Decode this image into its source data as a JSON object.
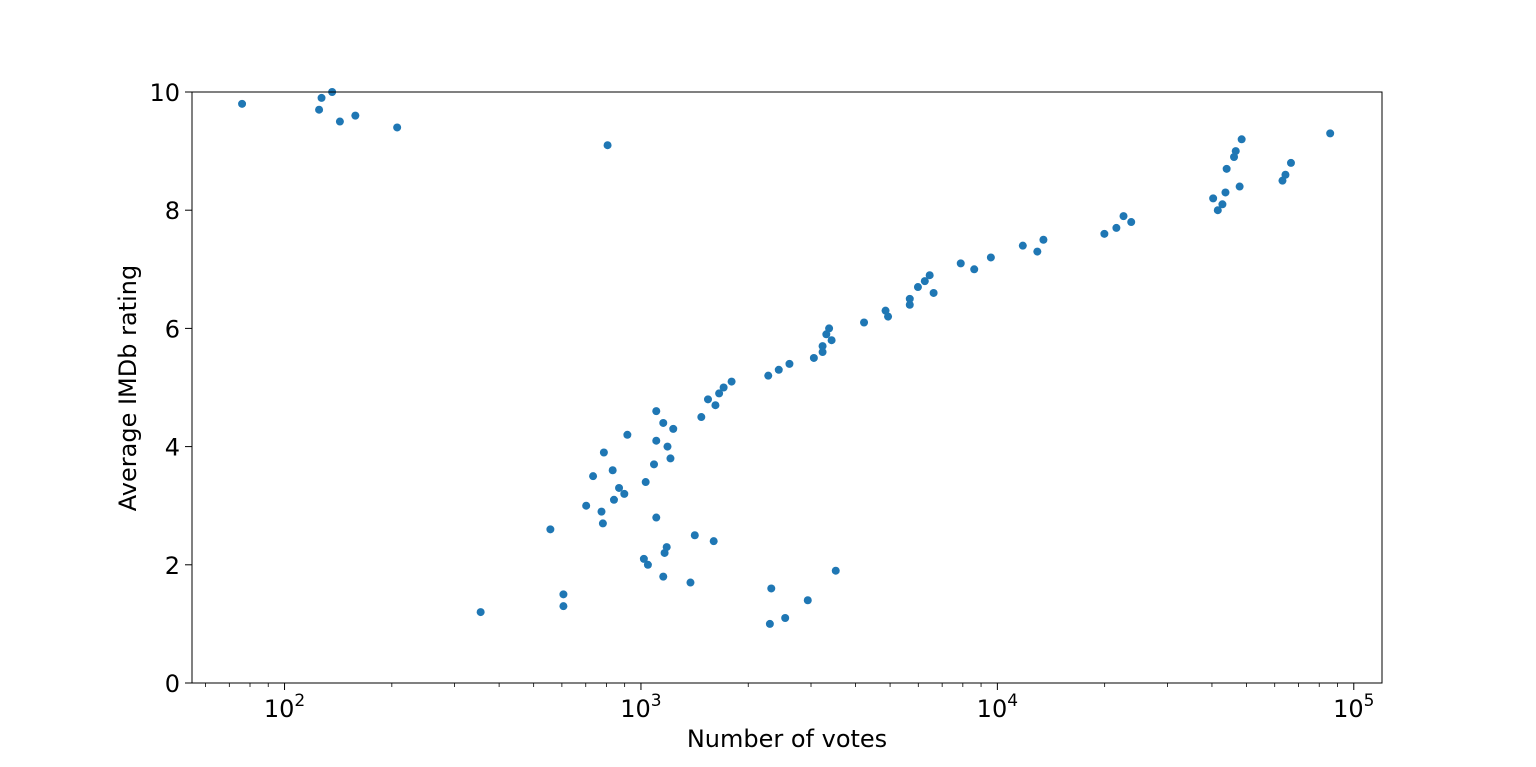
{
  "chart_data": {
    "type": "scatter",
    "title": "",
    "xlabel": "Number of votes",
    "ylabel": "Average IMDb rating",
    "xscale": "log",
    "xlim": [
      55,
      120000
    ],
    "ylim": [
      0,
      10
    ],
    "grid": false,
    "marker_color": "#1f77b4",
    "x_ticks": [
      {
        "value": 100,
        "base": "10",
        "exp": "2"
      },
      {
        "value": 1000,
        "base": "10",
        "exp": "3"
      },
      {
        "value": 10000,
        "base": "10",
        "exp": "4"
      },
      {
        "value": 100000,
        "base": "10",
        "exp": "5"
      }
    ],
    "y_ticks": [
      {
        "value": 0,
        "label": "0"
      },
      {
        "value": 2,
        "label": "2"
      },
      {
        "value": 4,
        "label": "4"
      },
      {
        "value": 6,
        "label": "6"
      },
      {
        "value": 8,
        "label": "8"
      },
      {
        "value": 10,
        "label": "10"
      }
    ],
    "points": [
      [
        76,
        9.8
      ],
      [
        125,
        9.7
      ],
      [
        127,
        9.9
      ],
      [
        136,
        10.0
      ],
      [
        143,
        9.5
      ],
      [
        158,
        9.6
      ],
      [
        207,
        9.4
      ],
      [
        355,
        1.2
      ],
      [
        557,
        2.6
      ],
      [
        606,
        1.5
      ],
      [
        606,
        1.3
      ],
      [
        702,
        3.0
      ],
      [
        734,
        3.5
      ],
      [
        775,
        2.9
      ],
      [
        782,
        2.7
      ],
      [
        787,
        3.9
      ],
      [
        806,
        9.1
      ],
      [
        833,
        3.6
      ],
      [
        840,
        3.1
      ],
      [
        868,
        3.3
      ],
      [
        898,
        3.2
      ],
      [
        916,
        4.2
      ],
      [
        1019,
        2.1
      ],
      [
        1031,
        3.4
      ],
      [
        1046,
        2.0
      ],
      [
        1088,
        3.7
      ],
      [
        1104,
        4.6
      ],
      [
        1104,
        4.1
      ],
      [
        1104,
        2.8
      ],
      [
        1155,
        4.4
      ],
      [
        1155,
        1.8
      ],
      [
        1165,
        2.2
      ],
      [
        1181,
        2.3
      ],
      [
        1187,
        4.0
      ],
      [
        1210,
        3.8
      ],
      [
        1232,
        4.3
      ],
      [
        1377,
        1.7
      ],
      [
        1416,
        2.5
      ],
      [
        1477,
        4.5
      ],
      [
        1542,
        4.8
      ],
      [
        1600,
        2.4
      ],
      [
        1618,
        4.7
      ],
      [
        1657,
        4.9
      ],
      [
        1706,
        5.0
      ],
      [
        1796,
        5.1
      ],
      [
        2276,
        5.2
      ],
      [
        2300,
        1.0
      ],
      [
        2321,
        1.6
      ],
      [
        2436,
        5.3
      ],
      [
        2539,
        1.1
      ],
      [
        2610,
        5.4
      ],
      [
        2938,
        1.4
      ],
      [
        3056,
        5.5
      ],
      [
        3233,
        5.6
      ],
      [
        3233,
        5.7
      ],
      [
        3312,
        5.9
      ],
      [
        3372,
        6.0
      ],
      [
        3427,
        5.8
      ],
      [
        3520,
        1.9
      ],
      [
        4226,
        6.1
      ],
      [
        4856,
        6.3
      ],
      [
        4935,
        6.2
      ],
      [
        5679,
        6.4
      ],
      [
        5679,
        6.5
      ],
      [
        5986,
        6.7
      ],
      [
        6258,
        6.8
      ],
      [
        6458,
        6.9
      ],
      [
        6624,
        6.6
      ],
      [
        7893,
        7.1
      ],
      [
        8611,
        7.0
      ],
      [
        9589,
        7.2
      ],
      [
        11787,
        7.4
      ],
      [
        12946,
        7.3
      ],
      [
        13466,
        7.5
      ],
      [
        19963,
        7.6
      ],
      [
        21572,
        7.7
      ],
      [
        22592,
        7.9
      ],
      [
        23744,
        7.8
      ],
      [
        40312,
        8.2
      ],
      [
        41542,
        8.0
      ],
      [
        42799,
        8.1
      ],
      [
        43650,
        8.3
      ],
      [
        43986,
        8.7
      ],
      [
        46132,
        8.9
      ],
      [
        46645,
        9.0
      ],
      [
        47837,
        8.4
      ],
      [
        48463,
        9.2
      ],
      [
        63087,
        8.5
      ],
      [
        64310,
        8.6
      ],
      [
        66646,
        8.8
      ],
      [
        85860,
        9.3
      ]
    ]
  }
}
